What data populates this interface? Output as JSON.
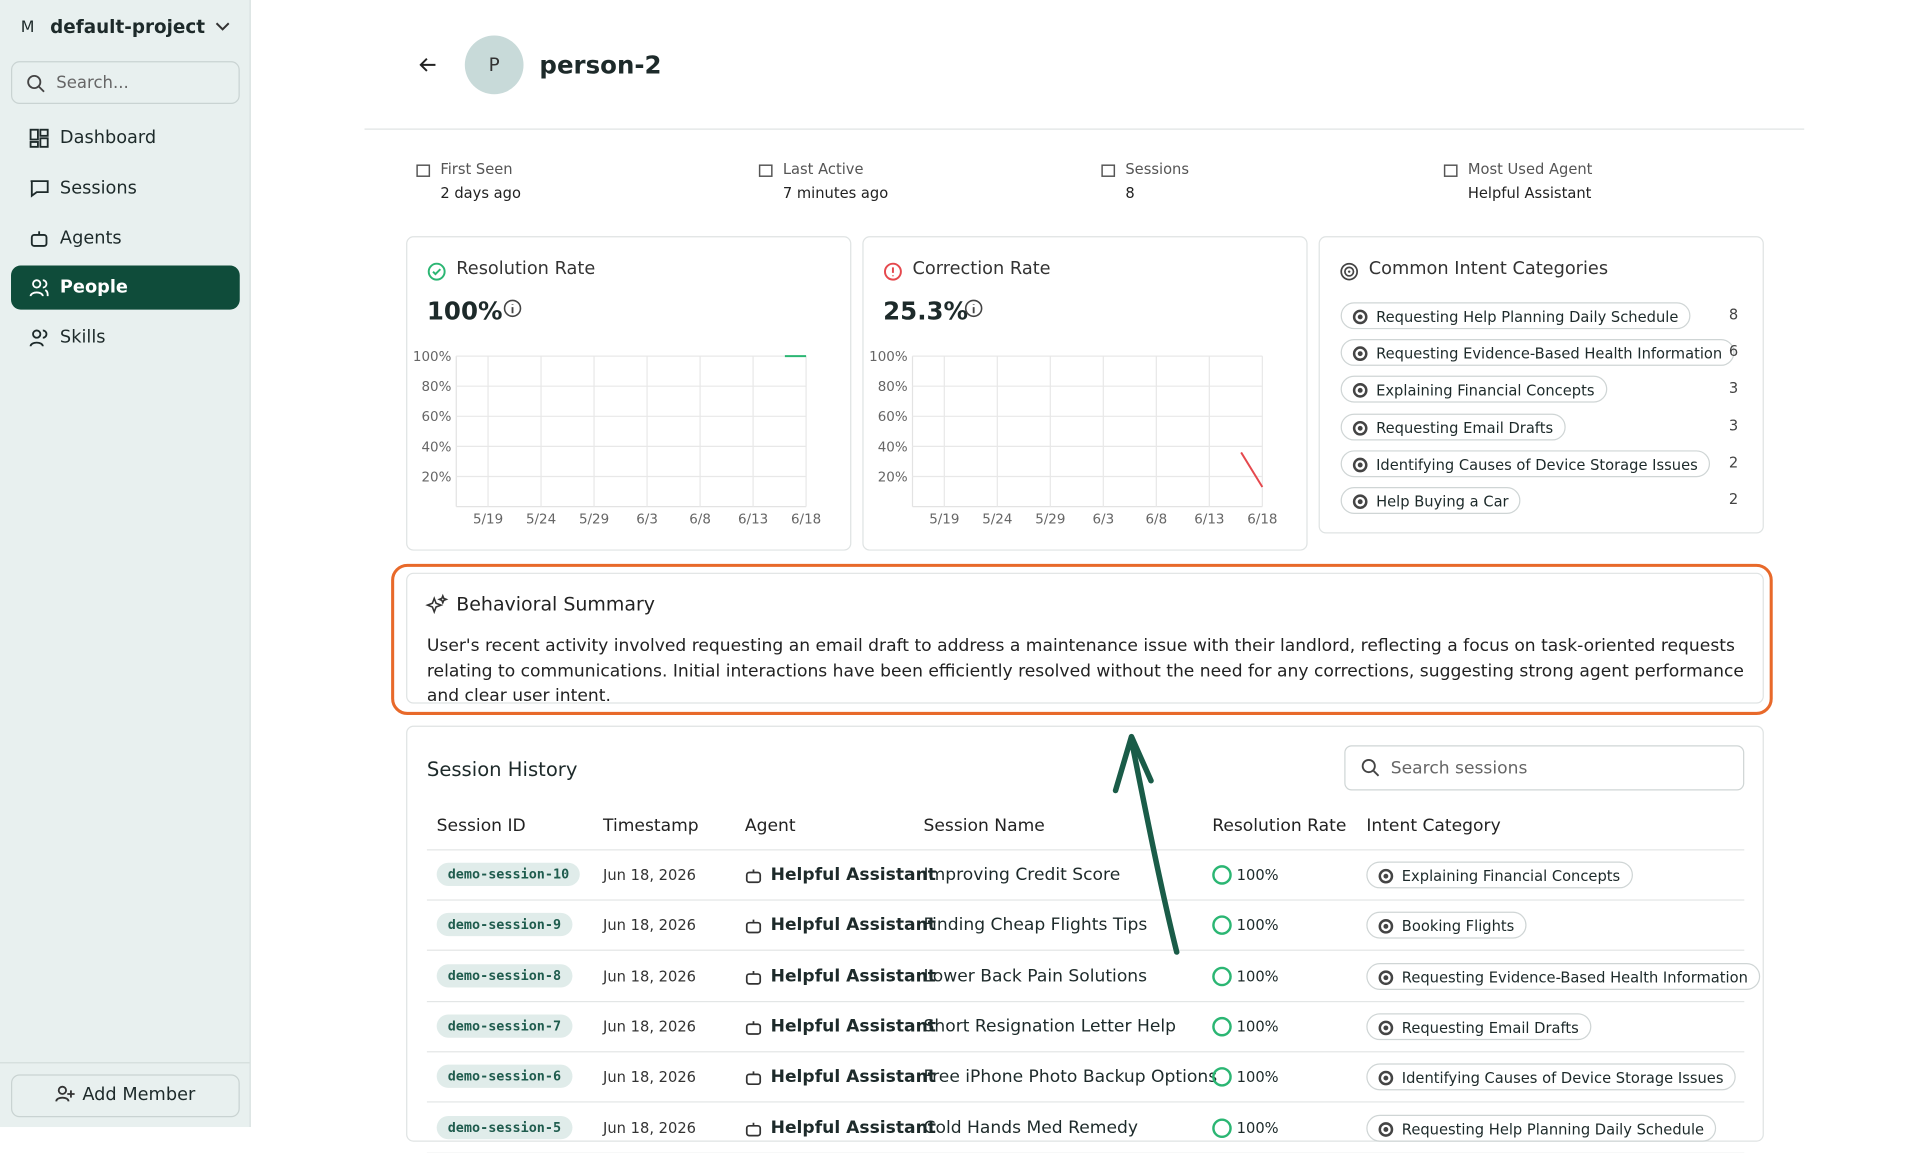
{
  "sidebar": {
    "project_initial": "M",
    "project": "default-project",
    "search_placeholder": "Search...",
    "nav": [
      "Dashboard",
      "Sessions",
      "Agents",
      "People",
      "Skills"
    ],
    "add_member": "Add Member"
  },
  "header": {
    "avatar": "P",
    "name": "person-2"
  },
  "stats": [
    {
      "label": "First Seen",
      "value": "2 days ago"
    },
    {
      "label": "Last Active",
      "value": "7 minutes ago"
    },
    {
      "label": "Sessions",
      "value": "8"
    },
    {
      "label": "Most Used Agent",
      "value": "Helpful Assistant"
    }
  ],
  "resolution": {
    "title": "Resolution Rate",
    "value": "100%",
    "chart": {
      "type": "line",
      "color": "#2bb673",
      "x": [
        "6/16",
        "6/18"
      ],
      "values": [
        100,
        100
      ],
      "xlim": [
        "5/16",
        "6/18"
      ],
      "ylim": [
        0,
        100
      ],
      "xticks": [
        "5/19",
        "5/24",
        "5/29",
        "6/3",
        "6/8",
        "6/13",
        "6/18"
      ],
      "yticks": [
        {
          "value": 20,
          "label": "20%"
        },
        {
          "value": 40,
          "label": "40%"
        },
        {
          "value": 60,
          "label": "60%"
        },
        {
          "value": 80,
          "label": "80%"
        },
        {
          "value": 100,
          "label": "100%"
        }
      ]
    }
  },
  "correction": {
    "title": "Correction Rate",
    "value": "25.3%",
    "chart": {
      "type": "line",
      "color": "#e5484d",
      "x": [
        "6/16",
        "6/18"
      ],
      "values": [
        36,
        13
      ],
      "xlim": [
        "5/16",
        "6/18"
      ],
      "ylim": [
        0,
        100
      ],
      "xticks": [
        "5/19",
        "5/24",
        "5/29",
        "6/3",
        "6/8",
        "6/13",
        "6/18"
      ],
      "yticks": [
        {
          "value": 20,
          "label": "20%"
        },
        {
          "value": 40,
          "label": "40%"
        },
        {
          "value": 60,
          "label": "60%"
        },
        {
          "value": 80,
          "label": "80%"
        },
        {
          "value": 100,
          "label": "100%"
        }
      ]
    }
  },
  "intents": {
    "title": "Common Intent Categories",
    "items": [
      {
        "name": "Requesting Help Planning Daily Schedule",
        "count": 8
      },
      {
        "name": "Requesting Evidence-Based Health Information",
        "count": 6
      },
      {
        "name": "Explaining Financial Concepts",
        "count": 3
      },
      {
        "name": "Requesting Email Drafts",
        "count": 3
      },
      {
        "name": "Identifying Causes of Device Storage Issues",
        "count": 2
      },
      {
        "name": "Help Buying a Car",
        "count": 2
      }
    ]
  },
  "summary": {
    "title": "Behavioral Summary",
    "text": "User's recent activity involved requesting an email draft to address a maintenance issue with their landlord, reflecting a focus on task-oriented requests relating to communications. Initial interactions have been efficiently resolved without the need for any corrections, suggesting strong agent performance and clear user intent."
  },
  "sessions": {
    "title": "Session History",
    "search_placeholder": "Search sessions",
    "columns": [
      "Session ID",
      "Timestamp",
      "Agent",
      "Session Name",
      "Resolution Rate",
      "Intent Category"
    ],
    "rows": [
      [
        "demo-session-10",
        "Jun 18, 2026",
        "Helpful Assistant",
        "Improving Credit Score",
        "100%",
        "Explaining Financial Concepts"
      ],
      [
        "demo-session-9",
        "Jun 18, 2026",
        "Helpful Assistant",
        "Finding Cheap Flights Tips",
        "100%",
        "Booking Flights"
      ],
      [
        "demo-session-8",
        "Jun 18, 2026",
        "Helpful Assistant",
        "Lower Back Pain Solutions",
        "100%",
        "Requesting Evidence-Based Health Information"
      ],
      [
        "demo-session-7",
        "Jun 18, 2026",
        "Helpful Assistant",
        "Short Resignation Letter Help",
        "100%",
        "Requesting Email Drafts"
      ],
      [
        "demo-session-6",
        "Jun 18, 2026",
        "Helpful Assistant",
        "Free iPhone Photo Backup Options",
        "100%",
        "Identifying Causes of Device Storage Issues"
      ],
      [
        "demo-session-5",
        "Jun 18, 2026",
        "Helpful Assistant",
        "Cold Hands Med Remedy",
        "100%",
        "Requesting Help Planning Daily Schedule"
      ]
    ]
  }
}
